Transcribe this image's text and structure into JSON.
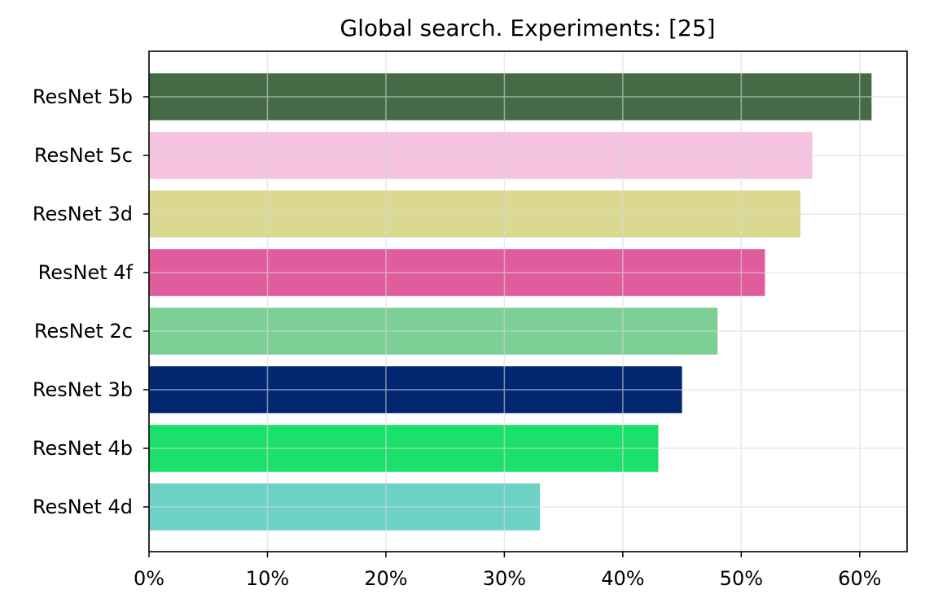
{
  "chart_data": {
    "type": "bar",
    "orientation": "horizontal",
    "title": "Global search. Experiments: [25]",
    "xlabel": "",
    "ylabel": "",
    "categories": [
      "ResNet 5b",
      "ResNet 5c",
      "ResNet 3d",
      "ResNet 4f",
      "ResNet 2c",
      "ResNet 3b",
      "ResNet 4b",
      "ResNet 4d"
    ],
    "values": [
      61,
      56,
      55,
      52,
      48,
      45,
      43,
      33
    ],
    "colors": [
      "#446a46",
      "#f5c3df",
      "#dbd892",
      "#e05c9c",
      "#7ccf95",
      "#02266f",
      "#1be06c",
      "#6dd1c5"
    ],
    "xlim": [
      0,
      64
    ],
    "x_ticks": [
      0,
      10,
      20,
      30,
      40,
      50,
      60
    ],
    "x_tick_labels": [
      "0%",
      "10%",
      "20%",
      "30%",
      "40%",
      "50%",
      "60%"
    ],
    "grid": true,
    "legend": "none"
  }
}
